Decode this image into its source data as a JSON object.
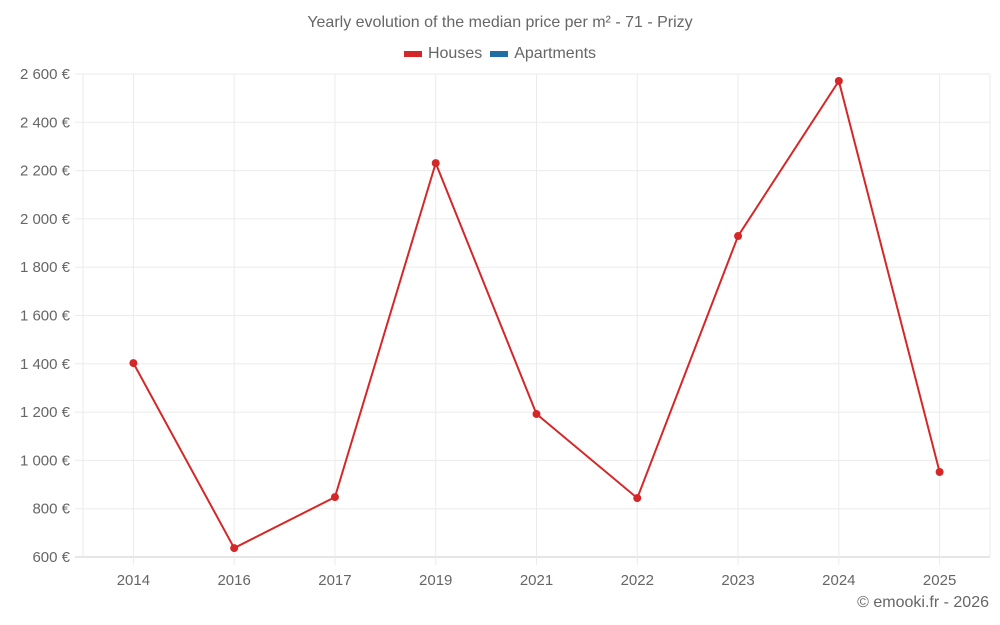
{
  "title": "Yearly evolution of the median price per m² - 71 - Prizy",
  "legend": [
    {
      "label": "Houses",
      "color": "#d62728"
    },
    {
      "label": "Apartments",
      "color": "#1f6fa5"
    }
  ],
  "credit": "© emooki.fr - 2026",
  "chart_data": {
    "type": "line",
    "title": "Yearly evolution of the median price per m² - 71 - Prizy",
    "xlabel": "",
    "ylabel": "",
    "categories": [
      "2014",
      "2016",
      "2017",
      "2019",
      "2021",
      "2022",
      "2023",
      "2024",
      "2025"
    ],
    "series": [
      {
        "name": "Houses",
        "color": "#d62728",
        "values": [
          1403,
          637,
          848,
          2231,
          1192,
          844,
          1929,
          2571,
          952
        ]
      },
      {
        "name": "Apartments",
        "color": "#1f6fa5",
        "values": []
      }
    ],
    "ylim": [
      600,
      2600
    ],
    "yticks": [
      600,
      800,
      1000,
      1200,
      1400,
      1600,
      1800,
      2000,
      2200,
      2400,
      2600
    ],
    "ytick_labels": [
      "600 €",
      "800 €",
      "1 000 €",
      "1 200 €",
      "1 400 €",
      "1 600 €",
      "1 800 €",
      "2 000 €",
      "2 200 €",
      "2 400 €",
      "2 600 €"
    ],
    "grid": true,
    "legend_position": "top"
  }
}
